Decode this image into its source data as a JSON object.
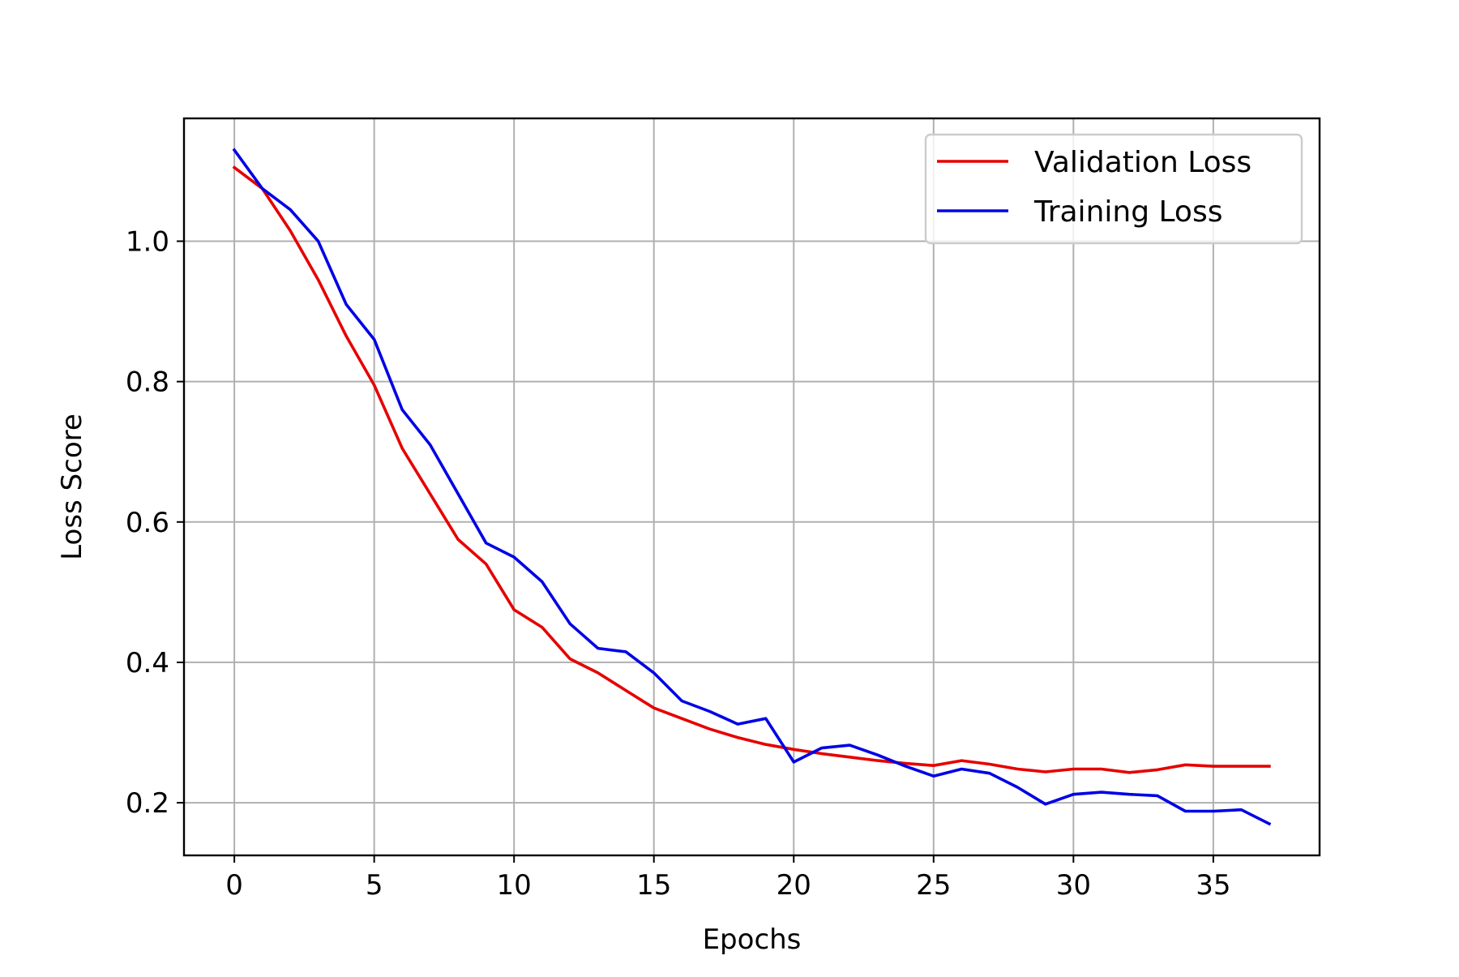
{
  "chart_data": {
    "type": "line",
    "title": "",
    "xlabel": "Epochs",
    "ylabel": "Loss Score",
    "xlim": [
      -1.8,
      38.8
    ],
    "ylim": [
      0.125,
      1.175
    ],
    "xticks": [
      0,
      5,
      10,
      15,
      20,
      25,
      30,
      35
    ],
    "xtick_labels": [
      "0",
      "5",
      "10",
      "15",
      "20",
      "25",
      "30",
      "35"
    ],
    "yticks": [
      0.2,
      0.4,
      0.6,
      0.8,
      1.0
    ],
    "ytick_labels": [
      "0.2",
      "0.4",
      "0.6",
      "0.8",
      "1.0"
    ],
    "grid": true,
    "legend_position": "top-right",
    "x": [
      0,
      1,
      2,
      3,
      4,
      5,
      6,
      7,
      8,
      9,
      10,
      11,
      12,
      13,
      14,
      15,
      16,
      17,
      18,
      19,
      20,
      21,
      22,
      23,
      24,
      25,
      26,
      27,
      28,
      29,
      30,
      31,
      32,
      33,
      34,
      35,
      36,
      37
    ],
    "series": [
      {
        "name": "Validation Loss",
        "color": "#e60000",
        "values": [
          1.105,
          1.075,
          1.015,
          0.945,
          0.865,
          0.795,
          0.705,
          0.64,
          0.575,
          0.54,
          0.475,
          0.45,
          0.405,
          0.385,
          0.36,
          0.335,
          0.32,
          0.305,
          0.293,
          0.283,
          0.276,
          0.27,
          0.265,
          0.26,
          0.256,
          0.253,
          0.26,
          0.255,
          0.248,
          0.244,
          0.248,
          0.248,
          0.243,
          0.247,
          0.254,
          0.252,
          0.252,
          0.252
        ]
      },
      {
        "name": "Training Loss",
        "color": "#0000e6",
        "values": [
          1.13,
          1.075,
          1.045,
          1.0,
          0.91,
          0.86,
          0.76,
          0.71,
          0.64,
          0.57,
          0.55,
          0.515,
          0.455,
          0.42,
          0.415,
          0.385,
          0.345,
          0.33,
          0.312,
          0.32,
          0.258,
          0.278,
          0.282,
          0.268,
          0.252,
          0.238,
          0.248,
          0.242,
          0.222,
          0.198,
          0.212,
          0.215,
          0.212,
          0.21,
          0.188,
          0.188,
          0.19,
          0.17
        ]
      }
    ]
  }
}
